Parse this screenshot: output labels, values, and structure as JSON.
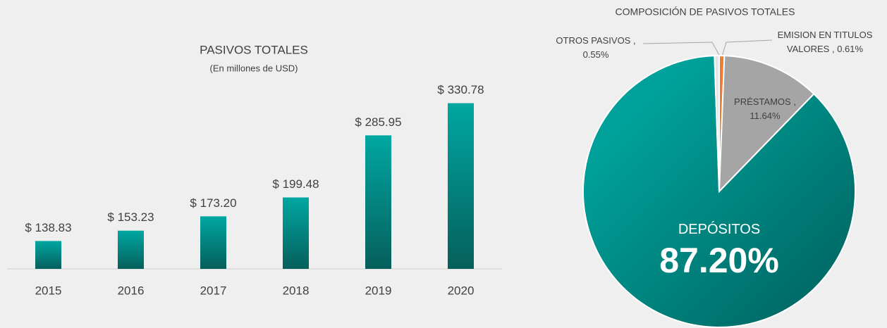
{
  "chart_data": [
    {
      "type": "bar",
      "title": "PASIVOS TOTALES",
      "subtitle": "(En millones de USD)",
      "categories": [
        "2015",
        "2016",
        "2017",
        "2018",
        "2019",
        "2020"
      ],
      "values": [
        138.83,
        153.23,
        173.2,
        199.48,
        285.95,
        330.78
      ],
      "value_labels": [
        "$ 138.83",
        "$ 153.23",
        "$ 173.20",
        "$ 199.48",
        "$ 285.95",
        "$ 330.78"
      ],
      "color": "#00a7a2",
      "ylim": [
        100,
        350
      ]
    },
    {
      "type": "pie",
      "title": "COMPOSICIÓN DE PASIVOS TOTALES",
      "categories": [
        "EMISION EN TITULOS VALORES ,",
        "PRÉSTAMOS ,",
        "DEPÓSITOS",
        "OTROS PASIVOS ,"
      ],
      "values": [
        0.61,
        11.64,
        87.2,
        0.55
      ],
      "value_labels": [
        "0.61%",
        "11.64%",
        "87.20%",
        "0.55%"
      ],
      "colors": [
        "#ed7d31",
        "#a5a5a5",
        "#00a19a",
        "#e4e4e4"
      ]
    }
  ]
}
